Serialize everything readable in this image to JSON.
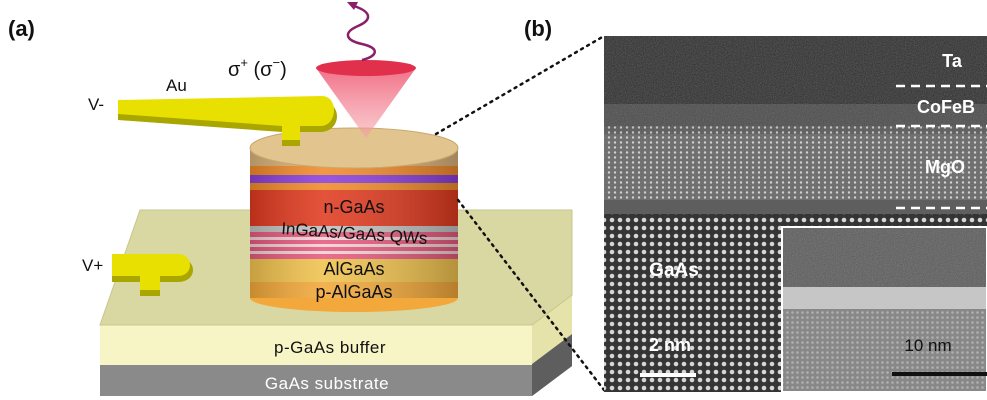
{
  "panel_a": {
    "label": "(a)",
    "polarization": {
      "main": "σ",
      "sup1": "+",
      "open": " (",
      "inner": "σ",
      "sup2": "−",
      "close": ")"
    },
    "contact_top_label": "V-",
    "contact_top_material": "Au",
    "contact_bottom_label": "V+",
    "layers": {
      "n_gaas": "n-GaAs",
      "qws": "InGaAs/GaAs QWs",
      "algaas": "AlGaAs",
      "p_algaas": "p-AlGaAs",
      "buffer": "p-GaAs buffer",
      "substrate": "GaAs substrate"
    }
  },
  "panel_b": {
    "label": "(b)",
    "layer_ta": "Ta",
    "layer_cofeb": "CoFeB",
    "layer_mgo": "MgO",
    "layer_gaas": "GaAs",
    "scale_main": "2 nm",
    "scale_inset": "10 nm"
  },
  "colors": {
    "gold": "#e8e000",
    "pillar_top": "#e2c48e",
    "n_gaas": "#e03a1f",
    "purple_band": "#8a3fd8",
    "qw_pink": "#e55a7c",
    "algaas": "#f0c24e",
    "p_algaas": "#f2a83a",
    "buffer": "#f6f3c4",
    "substrate": "#8a8a8a",
    "board_top": "#d9d8a2"
  }
}
